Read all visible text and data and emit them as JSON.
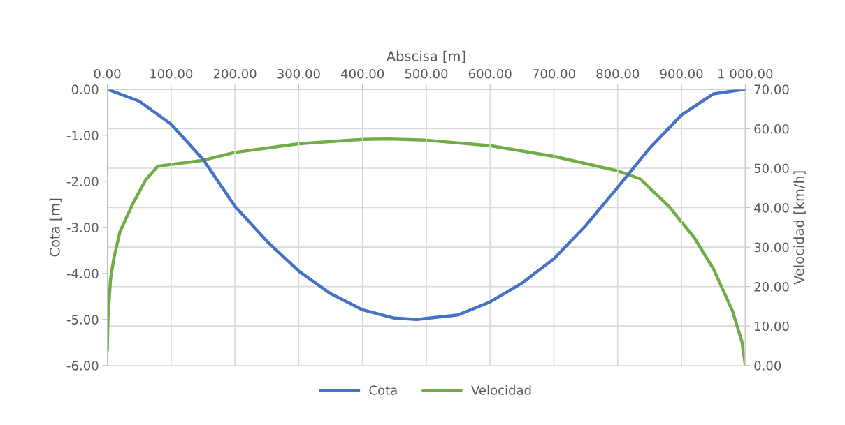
{
  "chart_data": {
    "type": "line",
    "xlabel": "Abscisa [m]",
    "ylabel": "Cota [m]",
    "y2label": "Velocidad [km/h]",
    "xlim": [
      0,
      1000
    ],
    "xticks": [
      {
        "value": 0,
        "label": "0.00"
      },
      {
        "value": 100,
        "label": "100.00"
      },
      {
        "value": 200,
        "label": "200.00"
      },
      {
        "value": 300,
        "label": "300.00"
      },
      {
        "value": 400,
        "label": "400.00"
      },
      {
        "value": 500,
        "label": "500.00"
      },
      {
        "value": 600,
        "label": "600.00"
      },
      {
        "value": 700,
        "label": "700.00"
      },
      {
        "value": 800,
        "label": "800.00"
      },
      {
        "value": 900,
        "label": "900.00"
      },
      {
        "value": 1000,
        "label": "1 000.00"
      }
    ],
    "ylim": [
      -6,
      0
    ],
    "yticks": [
      {
        "value": 0,
        "label": "0.00"
      },
      {
        "value": -1,
        "label": "-1.00"
      },
      {
        "value": -2,
        "label": "-2.00"
      },
      {
        "value": -3,
        "label": "-3.00"
      },
      {
        "value": -4,
        "label": "-4.00"
      },
      {
        "value": -5,
        "label": "-5.00"
      },
      {
        "value": -6,
        "label": "-6.00"
      }
    ],
    "y2lim": [
      0,
      70
    ],
    "y2ticks": [
      {
        "value": 0,
        "label": "0.00"
      },
      {
        "value": 10,
        "label": "10.00"
      },
      {
        "value": 20,
        "label": "20.00"
      },
      {
        "value": 30,
        "label": "30.00"
      },
      {
        "value": 40,
        "label": "40.00"
      },
      {
        "value": 50,
        "label": "50.00"
      },
      {
        "value": 60,
        "label": "60.00"
      },
      {
        "value": 70,
        "label": "70.00"
      }
    ],
    "grid": true,
    "legend": "bottom",
    "marker": "none",
    "line_style": "solid",
    "series": [
      {
        "name": "Cota",
        "color": "#4472c4",
        "x": [
          0,
          50,
          100,
          150,
          200,
          250,
          300,
          350,
          400,
          450,
          485,
          550,
          600,
          650,
          700,
          750,
          800,
          850,
          900,
          950,
          1000
        ],
        "values": [
          0,
          -0.26,
          -0.76,
          -1.52,
          -2.54,
          -3.3,
          -3.95,
          -4.44,
          -4.79,
          -4.97,
          -5.0,
          -4.9,
          -4.62,
          -4.21,
          -3.68,
          -2.96,
          -2.13,
          -1.28,
          -0.56,
          -0.1,
          0
        ]
      },
      {
        "name": "Velocidad",
        "color": "#70ad47",
        "axis": "y2",
        "x": [
          0,
          1,
          5,
          10,
          20,
          40,
          60,
          79,
          150,
          200,
          300,
          400,
          440,
          500,
          600,
          700,
          800,
          835,
          880,
          920,
          950,
          980,
          995,
          1000
        ],
        "values": [
          3.8,
          12,
          21.8,
          27,
          34,
          41,
          47,
          50.5,
          52,
          54,
          56.2,
          57.3,
          57.4,
          57.1,
          55.7,
          53,
          49.3,
          47.3,
          40.4,
          32.4,
          24.5,
          13.8,
          5.9,
          0
        ]
      }
    ]
  }
}
